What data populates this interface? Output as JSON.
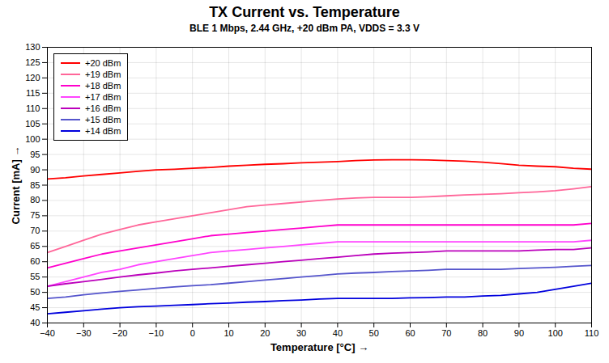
{
  "chart_data": {
    "type": "line",
    "title": "TX Current vs. Temperature",
    "subtitle": "BLE 1 Mbps, 2.44 GHz, +20 dBm PA, VDDS = 3.3 V",
    "xlabel": "Temperature [°C]",
    "ylabel": "Current [mA]",
    "xlim": [
      -40,
      110
    ],
    "ylim": [
      40,
      130
    ],
    "xticks": [
      -40,
      -30,
      -20,
      -10,
      0,
      10,
      20,
      30,
      40,
      50,
      60,
      70,
      80,
      90,
      100,
      110
    ],
    "yticks": [
      40,
      45,
      50,
      55,
      60,
      65,
      70,
      75,
      80,
      85,
      90,
      95,
      100,
      105,
      110,
      115,
      120,
      125,
      130
    ],
    "grid": true,
    "legend": "upper left",
    "x": [
      -40,
      -35,
      -30,
      -25,
      -20,
      -15,
      -10,
      -5,
      0,
      5,
      10,
      15,
      20,
      25,
      30,
      35,
      40,
      45,
      50,
      55,
      60,
      65,
      70,
      75,
      80,
      85,
      90,
      95,
      100,
      105,
      110
    ],
    "series": [
      {
        "name": "+20 dBm",
        "color": "#ff0000",
        "values": [
          87.0,
          87.4,
          88.0,
          88.5,
          89.0,
          89.5,
          90.0,
          90.2,
          90.5,
          90.8,
          91.2,
          91.5,
          91.8,
          92.0,
          92.3,
          92.5,
          92.7,
          93.0,
          93.2,
          93.3,
          93.3,
          93.2,
          93.0,
          92.8,
          92.5,
          92.0,
          91.5,
          91.2,
          91.0,
          90.5,
          90.2
        ]
      },
      {
        "name": "+19 dBm",
        "color": "#ff6699",
        "values": [
          63.0,
          65.0,
          67.0,
          69.0,
          70.5,
          72.0,
          73.0,
          74.0,
          75.0,
          76.0,
          77.0,
          78.0,
          78.5,
          79.0,
          79.5,
          80.0,
          80.5,
          80.8,
          81.0,
          81.0,
          81.0,
          81.2,
          81.5,
          81.8,
          82.0,
          82.2,
          82.5,
          82.8,
          83.2,
          83.8,
          84.5
        ]
      },
      {
        "name": "+18 dBm",
        "color": "#ff00cc",
        "values": [
          58.0,
          59.5,
          61.0,
          62.5,
          63.5,
          64.5,
          65.5,
          66.5,
          67.5,
          68.5,
          69.0,
          69.5,
          70.0,
          70.5,
          71.0,
          71.5,
          72.0,
          72.0,
          72.0,
          72.0,
          72.0,
          72.0,
          72.0,
          72.0,
          72.0,
          72.0,
          72.0,
          72.0,
          72.0,
          72.0,
          72.5
        ]
      },
      {
        "name": "+17 dBm",
        "color": "#ff44ff",
        "values": [
          52.0,
          53.5,
          55.0,
          56.5,
          57.5,
          59.0,
          60.0,
          61.0,
          62.0,
          63.0,
          63.5,
          64.0,
          64.5,
          65.0,
          65.5,
          66.0,
          66.5,
          66.5,
          66.5,
          66.5,
          66.5,
          66.5,
          66.5,
          66.5,
          66.5,
          66.5,
          66.5,
          66.5,
          66.5,
          66.5,
          67.0
        ]
      },
      {
        "name": "+16 dBm",
        "color": "#bb00bb",
        "values": [
          52.0,
          52.8,
          53.5,
          54.2,
          55.0,
          55.7,
          56.3,
          57.0,
          57.5,
          58.0,
          58.5,
          59.0,
          59.5,
          60.0,
          60.5,
          61.0,
          61.5,
          62.0,
          62.5,
          62.8,
          63.0,
          63.2,
          63.5,
          63.5,
          63.5,
          63.5,
          63.5,
          63.8,
          64.0,
          64.0,
          64.5
        ]
      },
      {
        "name": "+15 dBm",
        "color": "#5555cc",
        "values": [
          48.0,
          48.5,
          49.2,
          49.8,
          50.3,
          50.8,
          51.3,
          51.8,
          52.2,
          52.5,
          53.0,
          53.5,
          54.0,
          54.5,
          55.0,
          55.5,
          56.0,
          56.3,
          56.5,
          56.8,
          57.0,
          57.2,
          57.5,
          57.5,
          57.5,
          57.5,
          57.8,
          58.0,
          58.2,
          58.5,
          58.8
        ]
      },
      {
        "name": "+14 dBm",
        "color": "#0000dd",
        "values": [
          43.0,
          43.5,
          44.0,
          44.5,
          45.0,
          45.3,
          45.5,
          45.8,
          46.0,
          46.3,
          46.5,
          46.8,
          47.0,
          47.3,
          47.5,
          47.8,
          48.0,
          48.0,
          48.0,
          48.0,
          48.2,
          48.3,
          48.5,
          48.5,
          48.8,
          49.0,
          49.5,
          50.0,
          51.0,
          52.0,
          53.0
        ]
      }
    ]
  }
}
